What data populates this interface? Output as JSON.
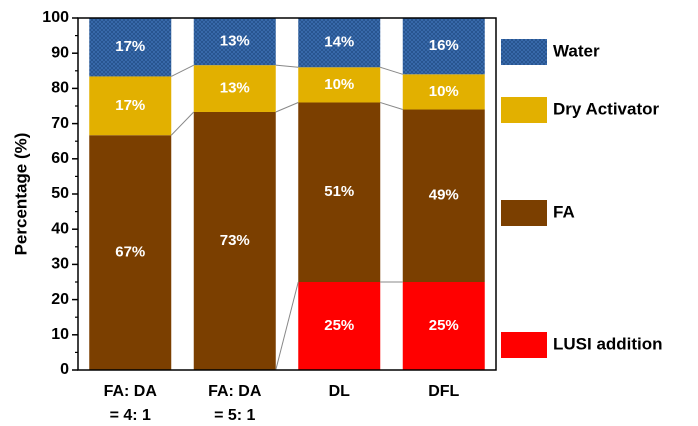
{
  "chart_data": {
    "type": "stacked_bar",
    "ylabel": "Percentage (%)",
    "categories": [
      [
        "FA: DA",
        "= 4: 1"
      ],
      [
        "FA: DA",
        "= 5: 1"
      ],
      [
        "DL"
      ],
      [
        "DFL"
      ]
    ],
    "series": [
      {
        "name": "LUSI addition",
        "color": "#ff0000",
        "values": [
          0,
          0,
          25,
          25
        ],
        "value_labels": [
          null,
          null,
          "25%",
          "25%"
        ]
      },
      {
        "name": "FA",
        "color": "#7b3f00",
        "values": [
          66.7,
          73.3,
          51,
          49
        ],
        "value_labels": [
          "67%",
          "73%",
          "51%",
          "49%"
        ]
      },
      {
        "name": "Dry Activator",
        "color": "#e2b000",
        "values": [
          16.7,
          13.3,
          10,
          10
        ],
        "value_labels": [
          "17%",
          "13%",
          "10%",
          "10%"
        ]
      },
      {
        "name": "Water",
        "color": "#3b6eb0",
        "values": [
          16.6,
          13.4,
          14,
          16
        ],
        "value_labels": [
          "17%",
          "13%",
          "14%",
          "16%"
        ]
      }
    ],
    "ylim": [
      0,
      100
    ],
    "yticks": [
      0,
      10,
      20,
      30,
      40,
      50,
      60,
      70,
      80,
      90,
      100
    ]
  }
}
